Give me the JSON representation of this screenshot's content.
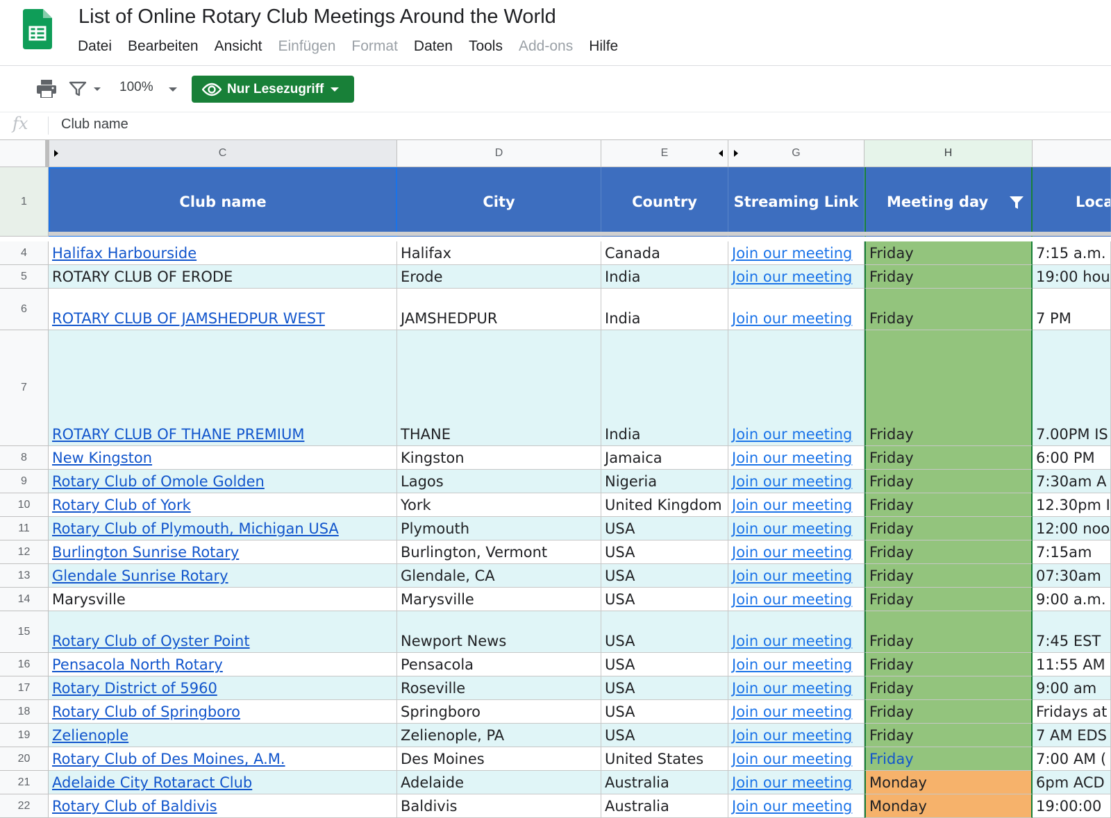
{
  "document": {
    "title": "List of Online Rotary Club Meetings Around the World"
  },
  "menu": [
    {
      "label": "Datei",
      "enabled": true
    },
    {
      "label": "Bearbeiten",
      "enabled": true
    },
    {
      "label": "Ansicht",
      "enabled": true
    },
    {
      "label": "Einfügen",
      "enabled": false
    },
    {
      "label": "Format",
      "enabled": false
    },
    {
      "label": "Daten",
      "enabled": true
    },
    {
      "label": "Tools",
      "enabled": true
    },
    {
      "label": "Add-ons",
      "enabled": false
    },
    {
      "label": "Hilfe",
      "enabled": true
    }
  ],
  "toolbar": {
    "zoom": "100%",
    "readonly_label": "Nur Lesezugriff"
  },
  "formula_bar": {
    "fx": "fx",
    "content": "Club name"
  },
  "columns": [
    "C",
    "D",
    "E",
    "G",
    "H"
  ],
  "header_row": {
    "number": "1",
    "cells": [
      "Club name",
      "City",
      "Country",
      "Streaming Link",
      "Meeting day",
      "Loca"
    ]
  },
  "rows": [
    {
      "n": "4",
      "club": "Halifax Harbourside",
      "club_link": true,
      "city": "Halifax",
      "country": "Canada",
      "link": "Join our meeting",
      "day": "Friday",
      "time": "7:15 a.m."
    },
    {
      "n": "5",
      "club": "ROTARY CLUB OF ERODE",
      "club_link": false,
      "city": "Erode",
      "country": "India",
      "link": "Join our meeting",
      "day": "Friday",
      "time": "19:00 hou"
    },
    {
      "n": "6",
      "club": "ROTARY CLUB OF JAMSHEDPUR WEST",
      "club_link": true,
      "city": "JAMSHEDPUR",
      "country": "India",
      "link": "Join our meeting",
      "day": "Friday",
      "time": "7 PM"
    },
    {
      "n": "7",
      "club": "ROTARY CLUB OF THANE PREMIUM",
      "club_link": true,
      "city": "THANE",
      "country": "India",
      "link": "Join our meeting",
      "day": "Friday",
      "time": "7.00PM IS"
    },
    {
      "n": "8",
      "club": "New Kingston",
      "club_link": true,
      "city": "Kingston",
      "country": "Jamaica",
      "link": "Join our meeting",
      "day": "Friday",
      "time": "6:00 PM"
    },
    {
      "n": "9",
      "club": "Rotary Club of Omole Golden",
      "club_link": true,
      "city": "Lagos",
      "country": "Nigeria",
      "link": "Join our meeting",
      "day": "Friday",
      "time": "7:30am A"
    },
    {
      "n": "10",
      "club": "Rotary Club of York",
      "club_link": true,
      "city": "York",
      "country": "United Kingdom",
      "link": "Join our meeting",
      "day": "Friday",
      "time": "12.30pm I"
    },
    {
      "n": "11",
      "club": "Rotary Club of Plymouth, Michigan USA",
      "club_link": true,
      "city": "Plymouth",
      "country": "USA",
      "link": "Join our meeting",
      "day": "Friday",
      "time": "12:00 noo"
    },
    {
      "n": "12",
      "club": "Burlington Sunrise Rotary",
      "club_link": true,
      "city": "Burlington, Vermont",
      "country": "USA",
      "link": "Join our meeting",
      "day": "Friday",
      "time": "7:15am"
    },
    {
      "n": "13",
      "club": "Glendale Sunrise Rotary",
      "club_link": true,
      "city": "Glendale, CA",
      "country": "USA",
      "link": "Join our meeting",
      "day": "Friday",
      "time": "07:30am"
    },
    {
      "n": "14",
      "club": "Marysville",
      "club_link": false,
      "city": "Marysville",
      "country": "USA",
      "link": "Join our meeting",
      "day": "Friday",
      "time": "9:00 a.m."
    },
    {
      "n": "15",
      "club": "Rotary Club of Oyster Point",
      "club_link": true,
      "city": "Newport News",
      "country": "USA",
      "link": "Join our meeting",
      "day": "Friday",
      "time": "7:45 EST"
    },
    {
      "n": "16",
      "club": "Pensacola North Rotary",
      "club_link": true,
      "city": "Pensacola",
      "country": "USA",
      "link": "Join our meeting",
      "day": "Friday",
      "time": "11:55 AM"
    },
    {
      "n": "17",
      "club": "Rotary District of 5960",
      "club_link": true,
      "city": "Roseville",
      "country": "USA",
      "link": "Join our meeting",
      "day": "Friday",
      "time": "9:00 am"
    },
    {
      "n": "18",
      "club": "Rotary Club of Springboro",
      "club_link": true,
      "city": "Springboro",
      "country": "USA",
      "link": "Join our meeting",
      "day": "Friday",
      "time": "Fridays at"
    },
    {
      "n": "19",
      "club": "Zelienople",
      "club_link": true,
      "city": "Zelienople, PA",
      "country": "USA",
      "link": "Join our meeting",
      "day": "Friday",
      "time": "7 AM EDS"
    },
    {
      "n": "20",
      "club": "Rotary Club of Des Moines, A.M.",
      "club_link": true,
      "city": "Des Moines",
      "country": "United States",
      "link": "Join our meeting",
      "day": "Friday",
      "time": "7:00 AM ("
    },
    {
      "n": "21",
      "club": "Adelaide City Rotaract Club",
      "club_link": true,
      "city": "Adelaide",
      "country": "Australia",
      "link": "Join our meeting",
      "day": "Monday",
      "time": "6pm ACD"
    },
    {
      "n": "22",
      "club": "Rotary Club of Baldivis",
      "club_link": true,
      "city": "Baldivis",
      "country": "Australia",
      "link": "Join our meeting",
      "day": "Monday",
      "time": "19:00:00"
    }
  ],
  "colors": {
    "header_blue": "#3d6ebf",
    "friday_green": "#93c47d",
    "monday_orange": "#f6b26b",
    "alt_row": "#e0f5f7",
    "readonly_green": "#188038",
    "link_blue": "#1155cc"
  }
}
